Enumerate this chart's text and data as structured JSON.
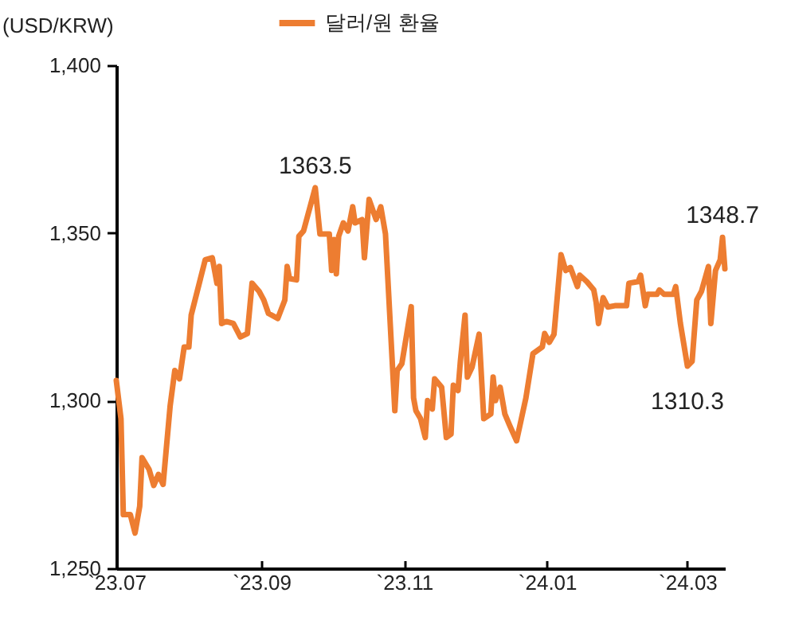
{
  "chart_data": {
    "type": "line",
    "ylabel": "(USD/KRW)",
    "legend": "top",
    "grid": false,
    "marker": "none",
    "line_style": "solid",
    "x": [
      "2023-07-01",
      "2023-07-03",
      "2023-07-04",
      "2023-07-07",
      "2023-07-09",
      "2023-07-11",
      "2023-07-12",
      "2023-07-15",
      "2023-07-17",
      "2023-07-19",
      "2023-07-21",
      "2023-07-24",
      "2023-07-26",
      "2023-07-28",
      "2023-07-30",
      "2023-08-01",
      "2023-08-02",
      "2023-08-08",
      "2023-08-11",
      "2023-08-13",
      "2023-08-14",
      "2023-08-15",
      "2023-08-17",
      "2023-08-20",
      "2023-08-23",
      "2023-08-26",
      "2023-08-28",
      "2023-08-31",
      "2023-09-02",
      "2023-09-04",
      "2023-09-08",
      "2023-09-11",
      "2023-09-12",
      "2023-09-13",
      "2023-09-16",
      "2023-09-17",
      "2023-09-19",
      "2023-09-24",
      "2023-09-26",
      "2023-09-30",
      "2023-10-01",
      "2023-10-02",
      "2023-10-03",
      "2023-10-04",
      "2023-10-06",
      "2023-10-08",
      "2023-10-10",
      "2023-10-11",
      "2023-10-14",
      "2023-10-15",
      "2023-10-17",
      "2023-10-20",
      "2023-10-22",
      "2023-10-24",
      "2023-10-28",
      "2023-10-29",
      "2023-10-31",
      "2023-11-04",
      "2023-11-05",
      "2023-11-06",
      "2023-11-08",
      "2023-11-10",
      "2023-11-11",
      "2023-11-13",
      "2023-11-14",
      "2023-11-17",
      "2023-11-19",
      "2023-11-21",
      "2023-11-22",
      "2023-11-24",
      "2023-11-25",
      "2023-11-27",
      "2023-11-28",
      "2023-11-30",
      "2023-12-03",
      "2023-12-05",
      "2023-12-08",
      "2023-12-09",
      "2023-12-10",
      "2023-12-12",
      "2023-12-14",
      "2023-12-16",
      "2023-12-19",
      "2023-12-23",
      "2023-12-26",
      "2023-12-30",
      "2023-12-31",
      "2024-01-02",
      "2024-01-04",
      "2024-01-07",
      "2024-01-09",
      "2024-01-11",
      "2024-01-14",
      "2024-01-15",
      "2024-01-18",
      "2024-01-21",
      "2024-01-22",
      "2024-01-23",
      "2024-01-25",
      "2024-01-27",
      "2024-01-30",
      "2024-02-04",
      "2024-02-05",
      "2024-02-09",
      "2024-02-10",
      "2024-02-12",
      "2024-02-13",
      "2024-02-17",
      "2024-02-18",
      "2024-02-20",
      "2024-02-24",
      "2024-02-25",
      "2024-02-27",
      "2024-03-01",
      "2024-03-03",
      "2024-03-05",
      "2024-03-07",
      "2024-03-10",
      "2024-03-11",
      "2024-03-13",
      "2024-03-15",
      "2024-03-16",
      "2024-03-17"
    ],
    "series": [
      {
        "name": "달러/원 환율",
        "color": "#ed7d31",
        "values": [
          1306,
          1294.6,
          1266,
          1266,
          1260.5,
          1268.5,
          1283,
          1279.5,
          1274.7,
          1278,
          1275,
          1298.4,
          1309,
          1306.5,
          1316,
          1316,
          1325.5,
          1342,
          1342.6,
          1335,
          1340,
          1323,
          1323.6,
          1323,
          1319,
          1320,
          1335,
          1332.6,
          1330,
          1326,
          1324.5,
          1330,
          1340,
          1336.4,
          1336,
          1349,
          1350.6,
          1363.5,
          1349.7,
          1349.7,
          1338.8,
          1348,
          1337.8,
          1349,
          1353,
          1350.6,
          1357.8,
          1353,
          1354,
          1342.6,
          1360,
          1354,
          1357.8,
          1349.7,
          1297,
          1309,
          1311,
          1328,
          1300.8,
          1297,
          1294.6,
          1289,
          1300,
          1297.5,
          1306.5,
          1304,
          1289,
          1290,
          1304.6,
          1303,
          1311.7,
          1325.5,
          1307,
          1310,
          1319.8,
          1294.6,
          1296,
          1307,
          1300,
          1304,
          1296,
          1292.7,
          1288,
          1300.8,
          1314,
          1316,
          1320,
          1317.4,
          1319.8,
          1343.5,
          1338.8,
          1339.7,
          1334,
          1337.4,
          1335.5,
          1333,
          1329.3,
          1323,
          1330.7,
          1327.9,
          1328.3,
          1328.3,
          1335,
          1335.5,
          1337.4,
          1328.3,
          1331.7,
          1331.7,
          1333,
          1331.7,
          1331.7,
          1334,
          1323,
          1310.3,
          1311.7,
          1330,
          1332.6,
          1340,
          1323,
          1338.8,
          1342,
          1348.7,
          1339.3
        ]
      }
    ],
    "xlim": [
      "2023-07-01",
      "2024-03-17"
    ],
    "xticks": [
      {
        "value": "2023-07-01",
        "label": "`23.07"
      },
      {
        "value": "2023-09-01",
        "label": "`23.09"
      },
      {
        "value": "2023-11-01",
        "label": "`23.11"
      },
      {
        "value": "2024-01-01",
        "label": "`24.01"
      },
      {
        "value": "2024-03-01",
        "label": "`24.03"
      }
    ],
    "ylim": [
      1250,
      1400
    ],
    "yticks": [
      {
        "value": 1250,
        "label": "1,250"
      },
      {
        "value": 1300,
        "label": "1,300"
      },
      {
        "value": 1350,
        "label": "1,350"
      },
      {
        "value": 1400,
        "label": "1,400"
      }
    ],
    "annotations": [
      {
        "text": "1363.5",
        "x": "2023-09-24",
        "y": 1363.5
      },
      {
        "text": "1310.3",
        "x": "2024-03-01",
        "y": 1310.3
      },
      {
        "text": "1348.7",
        "x": "2024-03-16",
        "y": 1348.7
      }
    ]
  }
}
